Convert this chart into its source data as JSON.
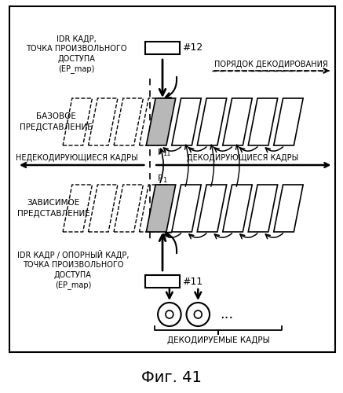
{
  "title": "Фиг. 41",
  "bg_color": "#ffffff",
  "border_color": "#000000",
  "text_color": "#000000",
  "gray_fill": "#b8b8b8",
  "label_top_left": "IDR КАДР,\nТОЧКА ПРОИЗВОЛЬНОГО\nДОСТУПА\n(EP_map)",
  "label_bottom_left": "IDR КАДР / ОПОРНЫЙ КАДР,\nТОЧКА ПРОИЗВОЛЬНОГО\nДОСТУПА\n(EP_map)",
  "label_base": "БАЗОВОЕ\nПРЕДСТАВЛЕНИЕ",
  "label_dependent": "ЗАВИСИМОЕ\nПРЕДСТАВЛЕНИЕ",
  "label_non_decoding": "НЕДЕКОДИРУЮЩИЕСЯ КАДРЫ",
  "label_decoding": "ДЕКОДИРУЮЩИЕСЯ КАДРЫ",
  "label_decode_order": "ПОРЯДОК ДЕКОДИРОВАНИЯ",
  "label_decodable": "ДЕКОДИРУЕМЫЕ КАДРЫ",
  "label_12": "#12",
  "label_11": "#11"
}
